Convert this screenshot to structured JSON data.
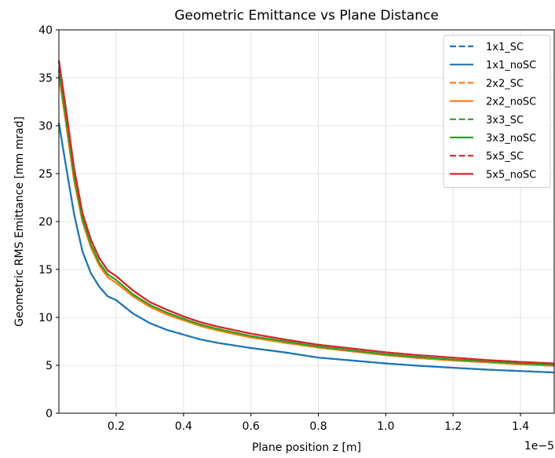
{
  "chart_data": {
    "type": "line",
    "title": "Geometric Emittance vs Plane Distance",
    "xlabel": "Plane position z [m]",
    "ylabel": "Geometric RMS Emittance [mm mrad]",
    "x_offset_label": "1e−5",
    "xlim": [
      0.03,
      1.5
    ],
    "ylim": [
      0,
      40
    ],
    "x_ticks": [
      0.2,
      0.4,
      0.6,
      0.8,
      1.0,
      1.2,
      1.4
    ],
    "x_tick_labels": [
      "0.2",
      "0.4",
      "0.6",
      "0.8",
      "1.0",
      "1.2",
      "1.4"
    ],
    "y_ticks": [
      0,
      5,
      10,
      15,
      20,
      25,
      30,
      35,
      40
    ],
    "y_tick_labels": [
      "0",
      "5",
      "10",
      "15",
      "20",
      "25",
      "30",
      "35",
      "40"
    ],
    "grid": true,
    "legend_position": "top-right",
    "x": [
      0.03,
      0.05,
      0.075,
      0.1,
      0.125,
      0.15,
      0.175,
      0.2,
      0.25,
      0.3,
      0.35,
      0.4,
      0.45,
      0.5,
      0.6,
      0.7,
      0.8,
      0.9,
      1.0,
      1.1,
      1.2,
      1.3,
      1.4,
      1.5
    ],
    "series": [
      {
        "name": "1x1_SC",
        "color": "#1f77b4",
        "dash": true,
        "values": [
          30.3,
          26.0,
          20.8,
          16.9,
          14.6,
          13.2,
          12.2,
          11.8,
          10.4,
          9.4,
          8.7,
          8.2,
          7.7,
          7.35,
          6.8,
          6.35,
          5.8,
          5.5,
          5.2,
          4.95,
          4.75,
          4.55,
          4.4,
          4.25
        ]
      },
      {
        "name": "1x1_noSC",
        "color": "#1f77b4",
        "dash": false,
        "values": [
          30.3,
          26.0,
          20.8,
          16.9,
          14.6,
          13.2,
          12.2,
          11.8,
          10.4,
          9.4,
          8.7,
          8.2,
          7.7,
          7.35,
          6.8,
          6.35,
          5.8,
          5.5,
          5.2,
          4.95,
          4.75,
          4.55,
          4.4,
          4.25
        ]
      },
      {
        "name": "2x2_SC",
        "color": "#ff7f0e",
        "dash": true,
        "values": [
          35.2,
          30.5,
          24.3,
          20.0,
          17.3,
          15.4,
          14.2,
          13.6,
          12.2,
          11.1,
          10.3,
          9.7,
          9.1,
          8.65,
          7.9,
          7.35,
          6.85,
          6.45,
          6.05,
          5.75,
          5.5,
          5.3,
          5.1,
          4.95
        ]
      },
      {
        "name": "2x2_noSC",
        "color": "#ff7f0e",
        "dash": false,
        "values": [
          35.2,
          30.5,
          24.3,
          20.0,
          17.3,
          15.4,
          14.2,
          13.6,
          12.2,
          11.1,
          10.3,
          9.7,
          9.1,
          8.65,
          7.9,
          7.35,
          6.85,
          6.45,
          6.05,
          5.75,
          5.5,
          5.3,
          5.1,
          4.95
        ]
      },
      {
        "name": "3x3_SC",
        "color": "#2ca02c",
        "dash": true,
        "values": [
          35.8,
          31.0,
          24.8,
          20.3,
          17.6,
          15.7,
          14.5,
          13.9,
          12.4,
          11.3,
          10.5,
          9.85,
          9.25,
          8.8,
          8.05,
          7.5,
          6.95,
          6.55,
          6.15,
          5.85,
          5.6,
          5.4,
          5.2,
          5.05
        ]
      },
      {
        "name": "3x3_noSC",
        "color": "#2ca02c",
        "dash": false,
        "values": [
          35.8,
          31.0,
          24.8,
          20.3,
          17.6,
          15.7,
          14.5,
          13.9,
          12.4,
          11.3,
          10.5,
          9.85,
          9.25,
          8.8,
          8.05,
          7.5,
          6.95,
          6.55,
          6.15,
          5.85,
          5.6,
          5.4,
          5.2,
          5.05
        ]
      },
      {
        "name": "5x5_SC",
        "color": "#d62728",
        "dash": true,
        "values": [
          36.8,
          32.0,
          25.6,
          20.9,
          18.1,
          16.2,
          14.9,
          14.3,
          12.8,
          11.6,
          10.8,
          10.1,
          9.5,
          9.05,
          8.3,
          7.7,
          7.15,
          6.75,
          6.35,
          6.05,
          5.8,
          5.55,
          5.35,
          5.2
        ]
      },
      {
        "name": "5x5_noSC",
        "color": "#d62728",
        "dash": false,
        "values": [
          36.8,
          32.0,
          25.6,
          20.9,
          18.1,
          16.2,
          14.9,
          14.3,
          12.8,
          11.6,
          10.8,
          10.1,
          9.5,
          9.05,
          8.3,
          7.7,
          7.15,
          6.75,
          6.35,
          6.05,
          5.8,
          5.55,
          5.35,
          5.2
        ]
      }
    ]
  }
}
